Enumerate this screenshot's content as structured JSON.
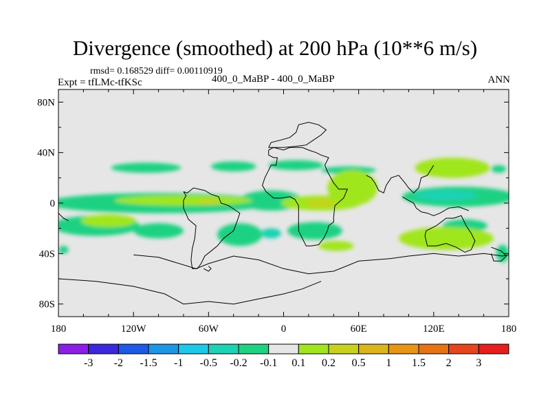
{
  "chart_data": {
    "type": "heatmap",
    "title": "Divergence (smoothed) at 200 hPa (10**6 m/s)",
    "stats_text": "rmsd= 0.168529 diff= 0.00110919",
    "expt_text": "Expt = tfLMc-tfKSc",
    "experiment_label": "400_0_MaBP - 400_0_MaBP",
    "season": "ANN",
    "x_range": [
      -180,
      180
    ],
    "y_range": [
      -90,
      90
    ],
    "x_ticks": [
      {
        "value": -180,
        "label": "180"
      },
      {
        "value": -120,
        "label": "120W"
      },
      {
        "value": -60,
        "label": "60W"
      },
      {
        "value": 0,
        "label": "0"
      },
      {
        "value": 60,
        "label": "60E"
      },
      {
        "value": 120,
        "label": "120E"
      },
      {
        "value": 180,
        "label": "180"
      }
    ],
    "y_ticks": [
      {
        "value": 80,
        "label": "80N"
      },
      {
        "value": 40,
        "label": "40N"
      },
      {
        "value": 0,
        "label": "0"
      },
      {
        "value": -40,
        "label": "40S"
      },
      {
        "value": -80,
        "label": "80S"
      }
    ],
    "colorbar": {
      "colors": [
        "#8c1ee6",
        "#3c28dc",
        "#1e5ae6",
        "#1e96e6",
        "#1ec8e6",
        "#1ed2b4",
        "#1ed282",
        "#e6e6e6",
        "#a0e61e",
        "#c8d21e",
        "#dcb41e",
        "#e69614",
        "#e67314",
        "#e6461e",
        "#e61e1e"
      ],
      "labels": [
        "-3",
        "-2",
        "-1.5",
        "-1",
        "-0.5",
        "-0.2",
        "-0.1",
        "0.1",
        "0.2",
        "0.5",
        "1",
        "1.5",
        "2",
        "3"
      ]
    },
    "regions": [
      {
        "level": -0.1,
        "lon": -110,
        "lat": 28,
        "rlon": 28,
        "rlat": 4
      },
      {
        "level": -0.1,
        "lon": -40,
        "lat": 29,
        "rlon": 18,
        "rlat": 4
      },
      {
        "level": -0.1,
        "lon": 10,
        "lat": 30,
        "rlon": 22,
        "rlat": 4
      },
      {
        "level": -0.1,
        "lon": 52,
        "lat": 26,
        "rlon": 22,
        "rlat": 3
      },
      {
        "level": -0.1,
        "lon": -100,
        "lat": 0,
        "rlon": 90,
        "rlat": 8
      },
      {
        "level": -0.1,
        "lon": -10,
        "lat": 2,
        "rlon": 25,
        "rlat": 8
      },
      {
        "level": -0.1,
        "lon": 140,
        "lat": 5,
        "rlon": 45,
        "rlat": 8
      },
      {
        "level": -0.1,
        "lon": -150,
        "lat": -18,
        "rlon": 35,
        "rlat": 8
      },
      {
        "level": -0.1,
        "lon": -100,
        "lat": -22,
        "rlon": 20,
        "rlat": 6
      },
      {
        "level": -0.1,
        "lon": -35,
        "lat": -25,
        "rlon": 18,
        "rlat": 9
      },
      {
        "level": -0.1,
        "lon": 25,
        "lat": -22,
        "rlon": 22,
        "rlat": 7
      },
      {
        "level": -0.1,
        "lon": 145,
        "lat": -18,
        "rlon": 18,
        "rlat": 5
      },
      {
        "level": -0.1,
        "lon": 172,
        "lat": 27,
        "rlon": 6,
        "rlat": 3
      },
      {
        "level": -0.1,
        "lon": -176,
        "lat": -37,
        "rlon": 4,
        "rlat": 3
      },
      {
        "level": -0.1,
        "lon": 175,
        "lat": -40,
        "rlon": 5,
        "rlat": 7
      },
      {
        "level": -0.2,
        "lon": 130,
        "lat": 6,
        "rlon": 25,
        "rlat": 4
      },
      {
        "level": -0.2,
        "lon": -10,
        "lat": -24,
        "rlon": 8,
        "rlat": 4
      },
      {
        "level": 0.1,
        "lon": -80,
        "lat": 2,
        "rlon": 55,
        "rlat": 4
      },
      {
        "level": 0.1,
        "lon": 30,
        "lat": 0,
        "rlon": 32,
        "rlat": 6
      },
      {
        "level": 0.1,
        "lon": 55,
        "lat": 12,
        "rlon": 20,
        "rlat": 14
      },
      {
        "level": 0.1,
        "lon": 135,
        "lat": 28,
        "rlon": 30,
        "rlat": 8
      },
      {
        "level": 0.1,
        "lon": -140,
        "lat": -14,
        "rlon": 22,
        "rlat": 5
      },
      {
        "level": 0.1,
        "lon": 130,
        "lat": -28,
        "rlon": 38,
        "rlat": 9
      },
      {
        "level": 0.1,
        "lon": 42,
        "lat": -34,
        "rlon": 14,
        "rlat": 4
      },
      {
        "level": 0.2,
        "lon": 30,
        "lat": 0,
        "rlon": 12,
        "rlat": 3
      },
      {
        "level": 0.2,
        "lon": -60,
        "lat": 1,
        "rlon": 8,
        "rlat": 2
      }
    ],
    "land_outline": [
      [
        [
          -12,
          42
        ],
        [
          -12,
          38
        ],
        [
          -8,
          36
        ],
        [
          -5,
          36
        ],
        [
          -6,
          30
        ],
        [
          -10,
          30
        ],
        [
          -12,
          26
        ],
        [
          -15,
          20
        ],
        [
          -17,
          14
        ],
        [
          -14,
          9
        ],
        [
          -8,
          4
        ],
        [
          -2,
          4
        ],
        [
          5,
          5
        ],
        [
          9,
          3
        ],
        [
          12,
          -2
        ],
        [
          12,
          -8
        ],
        [
          12,
          -15
        ],
        [
          12,
          -22
        ],
        [
          16,
          -30
        ],
        [
          18,
          -34
        ],
        [
          22,
          -34
        ],
        [
          28,
          -33
        ],
        [
          32,
          -28
        ],
        [
          35,
          -22
        ],
        [
          36,
          -18
        ],
        [
          40,
          -15
        ],
        [
          40,
          -11
        ],
        [
          41,
          -2
        ],
        [
          48,
          4
        ],
        [
          51,
          11
        ],
        [
          44,
          11
        ],
        [
          40,
          16
        ],
        [
          35,
          25
        ],
        [
          33,
          30
        ],
        [
          36,
          36
        ],
        [
          30,
          38
        ],
        [
          26,
          40
        ],
        [
          20,
          42
        ],
        [
          15,
          44
        ],
        [
          5,
          44
        ],
        [
          0,
          42
        ],
        [
          -8,
          44
        ],
        [
          -12,
          42
        ]
      ],
      [
        [
          -12,
          44
        ],
        [
          -10,
          48
        ],
        [
          -2,
          50
        ],
        [
          5,
          52
        ],
        [
          10,
          56
        ],
        [
          12,
          62
        ],
        [
          20,
          64
        ],
        [
          28,
          62
        ],
        [
          34,
          58
        ],
        [
          30,
          54
        ],
        [
          24,
          50
        ],
        [
          18,
          46
        ],
        [
          10,
          45
        ],
        [
          0,
          44
        ],
        [
          -12,
          44
        ]
      ],
      [
        [
          -80,
          9
        ],
        [
          -77,
          8
        ],
        [
          -72,
          12
        ],
        [
          -63,
          10
        ],
        [
          -58,
          7
        ],
        [
          -52,
          5
        ],
        [
          -50,
          0
        ],
        [
          -44,
          -2
        ],
        [
          -38,
          -6
        ],
        [
          -35,
          -8
        ],
        [
          -37,
          -14
        ],
        [
          -40,
          -22
        ],
        [
          -48,
          -28
        ],
        [
          -53,
          -34
        ],
        [
          -58,
          -38
        ],
        [
          -63,
          -42
        ],
        [
          -66,
          -48
        ],
        [
          -69,
          -52
        ],
        [
          -73,
          -52
        ],
        [
          -74,
          -45
        ],
        [
          -73,
          -36
        ],
        [
          -71,
          -28
        ],
        [
          -70,
          -18
        ],
        [
          -76,
          -13
        ],
        [
          -80,
          -4
        ],
        [
          -80,
          2
        ],
        [
          -78,
          6
        ],
        [
          -80,
          9
        ]
      ],
      [
        [
          -120,
          -41
        ],
        [
          -100,
          -43
        ],
        [
          -70,
          -52
        ],
        [
          -60,
          -48
        ],
        [
          -40,
          -42
        ],
        [
          -20,
          -45
        ],
        [
          0,
          -52
        ],
        [
          20,
          -56
        ],
        [
          40,
          -54
        ],
        [
          60,
          -46
        ],
        [
          85,
          -44
        ],
        [
          100,
          -42
        ],
        [
          120,
          -40
        ],
        [
          140,
          -42
        ],
        [
          160,
          -40
        ],
        [
          175,
          -42
        ],
        [
          180,
          -41
        ]
      ],
      [
        [
          -180,
          -60
        ],
        [
          -150,
          -62
        ],
        [
          -120,
          -66
        ],
        [
          -95,
          -72
        ],
        [
          -80,
          -80
        ],
        [
          -60,
          -78
        ],
        [
          -40,
          -80
        ],
        [
          -20,
          -76
        ],
        [
          0,
          -72
        ],
        [
          15,
          -68
        ],
        [
          30,
          -62
        ]
      ],
      [
        [
          66,
          22
        ],
        [
          70,
          20
        ],
        [
          73,
          16
        ],
        [
          76,
          10
        ],
        [
          80,
          8
        ],
        [
          82,
          14
        ],
        [
          86,
          20
        ],
        [
          92,
          22
        ],
        [
          97,
          16
        ],
        [
          100,
          12
        ],
        [
          104,
          8
        ],
        [
          108,
          12
        ],
        [
          110,
          20
        ],
        [
          115,
          22
        ],
        [
          120,
          30
        ]
      ],
      [
        [
          95,
          5
        ],
        [
          100,
          2
        ],
        [
          104,
          0
        ],
        [
          106,
          -4
        ],
        [
          110,
          -7
        ],
        [
          115,
          -8
        ],
        [
          120,
          -10
        ],
        [
          125,
          -8
        ],
        [
          132,
          -4
        ],
        [
          140,
          -3
        ],
        [
          148,
          -6
        ]
      ],
      [
        [
          114,
          -22
        ],
        [
          122,
          -18
        ],
        [
          130,
          -12
        ],
        [
          136,
          -12
        ],
        [
          142,
          -10
        ],
        [
          146,
          -18
        ],
        [
          150,
          -24
        ],
        [
          153,
          -30
        ],
        [
          150,
          -37
        ],
        [
          145,
          -39
        ],
        [
          138,
          -35
        ],
        [
          130,
          -32
        ],
        [
          122,
          -34
        ],
        [
          115,
          -34
        ],
        [
          113,
          -26
        ],
        [
          114,
          -22
        ]
      ],
      [
        [
          166,
          -35
        ],
        [
          174,
          -38
        ],
        [
          178,
          -42
        ],
        [
          174,
          -46
        ],
        [
          168,
          -46
        ],
        [
          166,
          -40
        ]
      ],
      [
        [
          -180,
          -8
        ],
        [
          -176,
          -12
        ],
        [
          -172,
          -14
        ]
      ],
      [
        [
          -60,
          -50
        ],
        [
          -58,
          -52
        ],
        [
          -60,
          -54
        ],
        [
          -64,
          -52
        ]
      ]
    ]
  }
}
